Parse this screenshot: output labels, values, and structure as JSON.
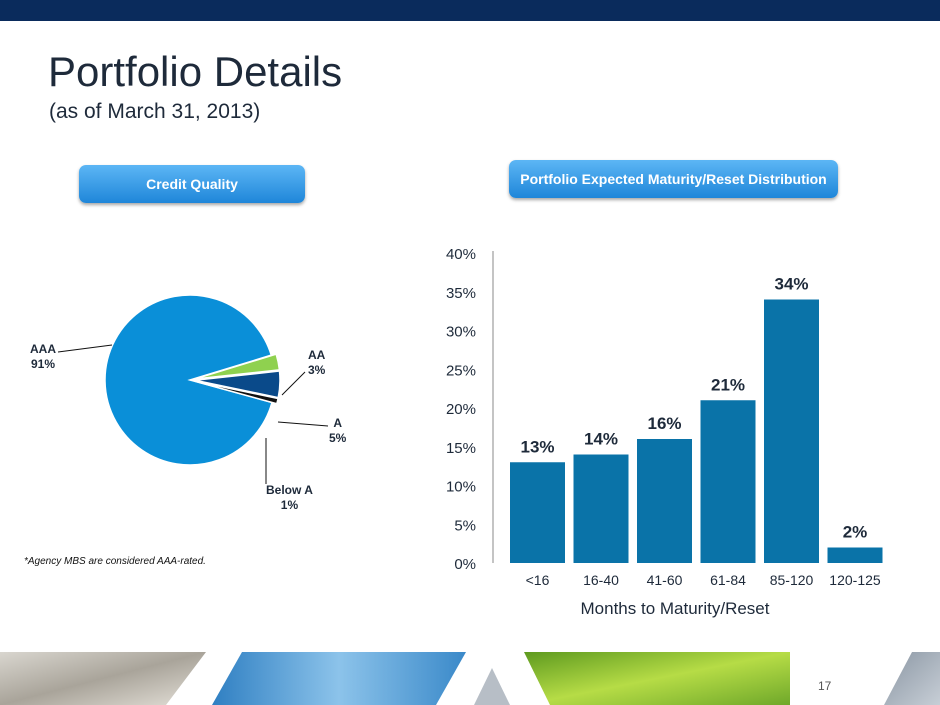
{
  "title": "Portfolio Details",
  "subtitle": "(as of March 31, 2013)",
  "credit_quality_label": "Credit Quality",
  "maturity_label": "Portfolio Expected Maturity/Reset Distribution",
  "footnote": "*Agency MBS are considered AAA-rated.",
  "page_number": "17",
  "colors": {
    "top_bar": "#0a2b5c",
    "aaa": "#0a8fd8",
    "aa": "#8fd14f",
    "a": "#0a4a8a",
    "below_a": "#111111",
    "bar": "#0a73a8"
  },
  "chart_data": [
    {
      "type": "pie",
      "labels": [
        "AAA",
        "AA",
        "A",
        "Below A"
      ],
      "values": [
        91,
        3,
        5,
        1
      ],
      "value_labels": [
        "91%",
        "3%",
        "5%",
        "1%"
      ]
    },
    {
      "type": "bar",
      "categories": [
        "<16",
        "16-40",
        "41-60",
        "61-84",
        "85-120",
        "120-125"
      ],
      "values": [
        13,
        14,
        16,
        21,
        34,
        2
      ],
      "value_labels": [
        "13%",
        "14%",
        "16%",
        "21%",
        "34%",
        "2%"
      ],
      "xlabel": "Months to Maturity/Reset",
      "ylabel": "",
      "ylim": [
        0,
        40
      ],
      "yticks": [
        "0%",
        "5%",
        "10%",
        "15%",
        "20%",
        "25%",
        "30%",
        "35%",
        "40%"
      ],
      "grid": false
    }
  ]
}
